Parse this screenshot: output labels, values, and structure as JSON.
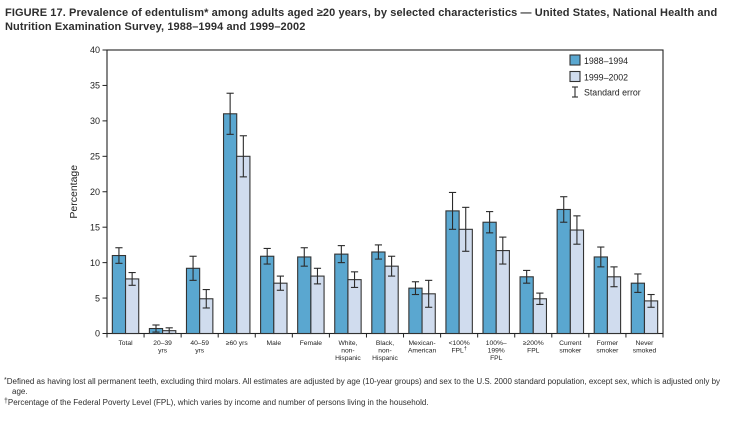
{
  "figure": {
    "title": "FIGURE 17. Prevalence of edentulism* among adults aged ≥20 years, by selected characteristics — United States, National Health and Nutrition Examination Survey, 1988–1994 and 1999–2002",
    "footnotes": [
      {
        "marker": "*",
        "text": "Defined as having lost all permanent teeth, excluding third molars. All estimates are adjusted by age (10-year groups) and sex to the U.S. 2000 standard population, except sex, which is adjusted only by age."
      },
      {
        "marker": "†",
        "text": "Percentage of the Federal Poverty Level (FPL), which varies by income and number of persons living in the household."
      }
    ]
  },
  "chart_data": {
    "type": "bar",
    "title": "",
    "xlabel": "",
    "ylabel": "Percentage",
    "ylim": [
      0,
      40
    ],
    "ytick_step": 5,
    "grid": false,
    "legend_position": "top-right-inside",
    "error_bar_label": "Standard error",
    "frame_color": "#222222",
    "bar_outline_color": "#333333",
    "error_bar_color": "#2b2b2b",
    "categories": [
      "Total",
      "20–39\nyrs",
      "40–59\nyrs",
      "≥60 yrs",
      "Male",
      "Female",
      "White,\nnon-\nHispanic",
      "Black,\nnon-\nHispanic",
      "Mexican-\nAmerican",
      "<100%\nFPL†",
      "100%–\n199%\nFPL",
      "≥200%\nFPL",
      "Current\nsmoker",
      "Former\nsmoker",
      "Never\nsmoked"
    ],
    "series": [
      {
        "name": "1988–1994",
        "color": "#5AA7D0",
        "values": [
          11.0,
          0.7,
          9.2,
          31.0,
          10.9,
          10.8,
          11.2,
          11.5,
          6.4,
          17.3,
          15.7,
          8.0,
          17.5,
          10.8,
          7.1
        ],
        "standard_errors": [
          1.1,
          0.5,
          1.7,
          2.9,
          1.1,
          1.3,
          1.2,
          1.0,
          0.9,
          2.6,
          1.5,
          0.9,
          1.8,
          1.4,
          1.3
        ]
      },
      {
        "name": "1999–2002",
        "color": "#D0DCEE",
        "values": [
          7.7,
          0.4,
          4.9,
          25.0,
          7.1,
          8.1,
          7.6,
          9.5,
          5.6,
          14.7,
          11.7,
          4.9,
          14.6,
          8.0,
          4.6
        ],
        "standard_errors": [
          0.9,
          0.4,
          1.3,
          2.9,
          1.0,
          1.1,
          1.1,
          1.4,
          1.9,
          3.1,
          1.9,
          0.8,
          2.0,
          1.4,
          0.9
        ]
      }
    ]
  }
}
